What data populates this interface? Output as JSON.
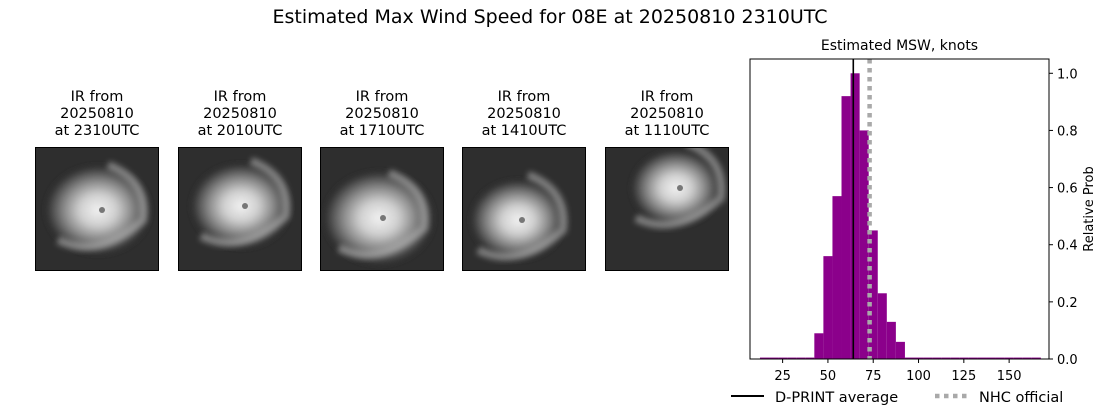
{
  "page_title": "Estimated Max Wind Speed for 08E at 20250810 2310UTC",
  "ir_panels": [
    {
      "line1": "IR from",
      "line2": "20250810",
      "line3": "at 2310UTC"
    },
    {
      "line1": "IR from",
      "line2": "20250810",
      "line3": "at 2010UTC"
    },
    {
      "line1": "IR from",
      "line2": "20250810",
      "line3": "at 1710UTC"
    },
    {
      "line1": "IR from",
      "line2": "20250810",
      "line3": "at 1410UTC"
    },
    {
      "line1": "IR from",
      "line2": "20250810",
      "line3": "at 1110UTC"
    }
  ],
  "chart_data": {
    "type": "bar",
    "title": "Estimated MSW, knots",
    "xlabel": "",
    "ylabel": "Relative Prob",
    "xlim": [
      7,
      172
    ],
    "ylim": [
      0,
      1.05
    ],
    "xticks": [
      25,
      50,
      75,
      100,
      125,
      150
    ],
    "yticks": [
      0.0,
      0.2,
      0.4,
      0.6,
      0.8,
      1.0
    ],
    "ytick_labels": [
      "0.0",
      "0.2",
      "0.4",
      "0.6",
      "0.8",
      "1.0"
    ],
    "y_axis_side": "right",
    "bin_width": 5,
    "bins": [
      {
        "x": 15,
        "y": 0.005
      },
      {
        "x": 20,
        "y": 0.005
      },
      {
        "x": 25,
        "y": 0.005
      },
      {
        "x": 30,
        "y": 0.005
      },
      {
        "x": 35,
        "y": 0.005
      },
      {
        "x": 40,
        "y": 0.005
      },
      {
        "x": 45,
        "y": 0.09
      },
      {
        "x": 50,
        "y": 0.36
      },
      {
        "x": 55,
        "y": 0.57
      },
      {
        "x": 60,
        "y": 0.92
      },
      {
        "x": 65,
        "y": 1.0
      },
      {
        "x": 70,
        "y": 0.8
      },
      {
        "x": 75,
        "y": 0.45
      },
      {
        "x": 80,
        "y": 0.23
      },
      {
        "x": 85,
        "y": 0.13
      },
      {
        "x": 90,
        "y": 0.06
      },
      {
        "x": 95,
        "y": 0.005
      },
      {
        "x": 100,
        "y": 0.005
      },
      {
        "x": 105,
        "y": 0.005
      },
      {
        "x": 110,
        "y": 0.005
      },
      {
        "x": 115,
        "y": 0.005
      },
      {
        "x": 120,
        "y": 0.005
      },
      {
        "x": 125,
        "y": 0.005
      },
      {
        "x": 130,
        "y": 0.005
      },
      {
        "x": 135,
        "y": 0.005
      },
      {
        "x": 140,
        "y": 0.005
      },
      {
        "x": 145,
        "y": 0.005
      },
      {
        "x": 150,
        "y": 0.005
      },
      {
        "x": 155,
        "y": 0.005
      },
      {
        "x": 160,
        "y": 0.005
      },
      {
        "x": 165,
        "y": 0.005
      }
    ],
    "bar_color": "#8b008b",
    "dprint_average": 64,
    "nhc_official": 73,
    "legend": [
      {
        "label": "D-PRINT average",
        "style": "solid",
        "color": "#000000"
      },
      {
        "label": "NHC official",
        "style": "dotted",
        "color": "#a9a9a9"
      }
    ],
    "legend_position": "bottom"
  }
}
